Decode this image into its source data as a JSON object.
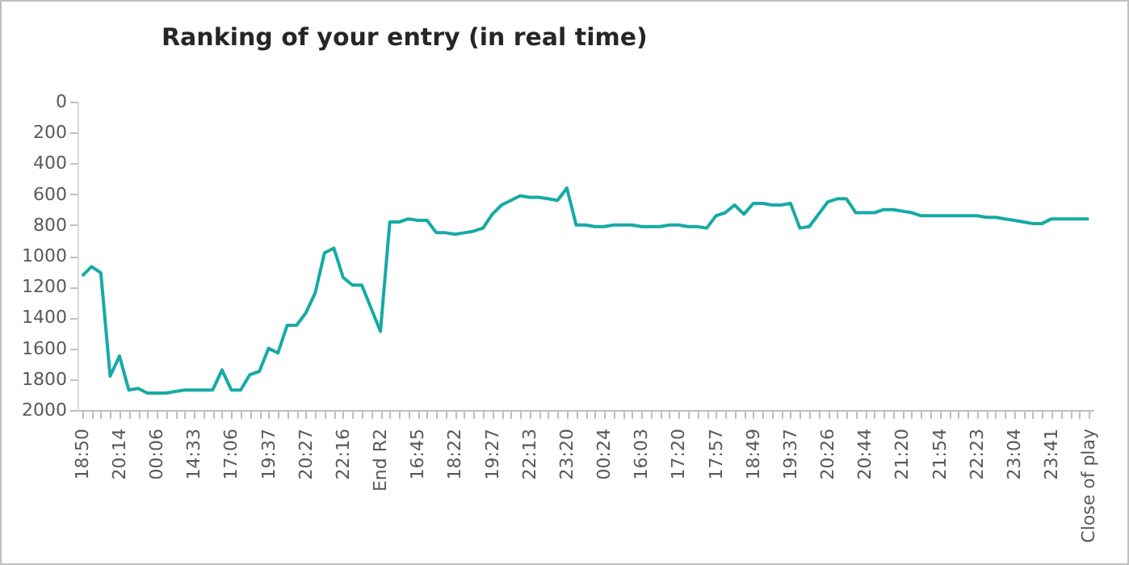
{
  "chart_data": {
    "type": "line",
    "title": "Ranking of your entry (in real time)",
    "categories": [
      "18:50",
      null,
      null,
      null,
      "20:14",
      null,
      null,
      null,
      "00:06",
      null,
      null,
      null,
      "14:33",
      null,
      null,
      null,
      "17:06",
      null,
      null,
      null,
      "19:37",
      null,
      null,
      null,
      "20:27",
      null,
      null,
      null,
      "22:16",
      null,
      null,
      null,
      "End R2",
      null,
      null,
      null,
      "16:45",
      null,
      null,
      null,
      "18:22",
      null,
      null,
      null,
      "19:27",
      null,
      null,
      null,
      "22:13",
      null,
      null,
      null,
      "23:20",
      null,
      null,
      null,
      "00:24",
      null,
      null,
      null,
      "16:03",
      null,
      null,
      null,
      "17:20",
      null,
      null,
      null,
      "17:57",
      null,
      null,
      null,
      "18:49",
      null,
      null,
      null,
      "19:37",
      null,
      null,
      null,
      "20:26",
      null,
      null,
      null,
      "20:44",
      null,
      null,
      null,
      "21:20",
      null,
      null,
      null,
      "21:54",
      null,
      null,
      null,
      "22:23",
      null,
      null,
      null,
      "23:04",
      null,
      null,
      null,
      "23:41",
      null,
      null,
      null,
      "Close of play"
    ],
    "series": [
      {
        "color": "#17aaa5",
        "values": [
          1130,
          1070,
          1110,
          1780,
          1650,
          1870,
          1860,
          1890,
          1890,
          1890,
          1880,
          1870,
          1870,
          1870,
          1870,
          1740,
          1870,
          1870,
          1770,
          1750,
          1600,
          1630,
          1450,
          1450,
          1370,
          1240,
          980,
          950,
          1140,
          1190,
          1190,
          1340,
          1490,
          780,
          780,
          760,
          770,
          770,
          850,
          850,
          860,
          850,
          840,
          820,
          730,
          670,
          640,
          610,
          620,
          620,
          630,
          640,
          560,
          800,
          800,
          810,
          810,
          800,
          800,
          800,
          810,
          810,
          810,
          800,
          800,
          810,
          810,
          820,
          740,
          720,
          670,
          730,
          660,
          660,
          670,
          670,
          660,
          820,
          810,
          730,
          650,
          630,
          630,
          720,
          720,
          720,
          700,
          700,
          710,
          720,
          740,
          740,
          740,
          740,
          740,
          740,
          740,
          750,
          750,
          760,
          770,
          780,
          790,
          790,
          760,
          760,
          760,
          760,
          760
        ]
      }
    ],
    "ylim": [
      2000,
      0
    ],
    "yticks": [
      0,
      200,
      400,
      600,
      800,
      1000,
      1200,
      1400,
      1600,
      1800,
      2000
    ],
    "grid": false,
    "marker": "none",
    "line_style": "solid"
  }
}
